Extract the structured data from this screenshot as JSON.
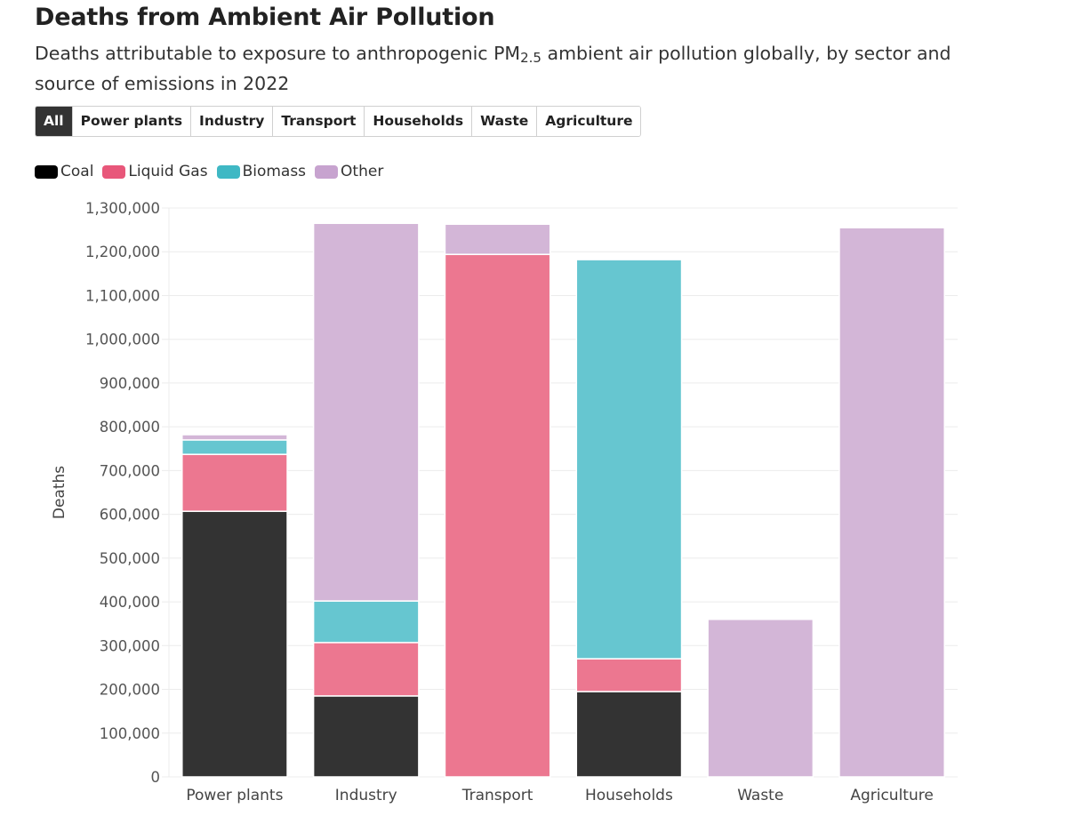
{
  "header": {
    "title": "Deaths from Ambient Air Pollution",
    "subtitle_pre": "Deaths attributable to exposure to anthropogenic PM",
    "subtitle_sub": "2.5",
    "subtitle_post": " ambient air pollution globally, by sector and source of emissions in 2022"
  },
  "tabs": [
    {
      "label": "All",
      "active": true
    },
    {
      "label": "Power plants",
      "active": false
    },
    {
      "label": "Industry",
      "active": false
    },
    {
      "label": "Transport",
      "active": false
    },
    {
      "label": "Households",
      "active": false
    },
    {
      "label": "Waste",
      "active": false
    },
    {
      "label": "Agriculture",
      "active": false
    }
  ],
  "chart_data": {
    "type": "bar",
    "stacked": true,
    "title": "Deaths from Ambient Air Pollution",
    "subtitle": "Deaths attributable to exposure to anthropogenic PM2.5 ambient air pollution globally, by sector and source of emissions in 2022",
    "xlabel": "",
    "ylabel": "Deaths",
    "ylim": [
      0,
      1300000
    ],
    "yticks": [
      0,
      100000,
      200000,
      300000,
      400000,
      500000,
      600000,
      700000,
      800000,
      900000,
      1000000,
      1100000,
      1200000,
      1300000
    ],
    "ytick_labels": [
      "0",
      "100,000",
      "200,000",
      "300,000",
      "400,000",
      "500,000",
      "600,000",
      "700,000",
      "800,000",
      "900,000",
      "1,000,000",
      "1,100,000",
      "1,200,000",
      "1,300,000"
    ],
    "grid": true,
    "legend_position": "top-left",
    "categories": [
      "Power plants",
      "Industry",
      "Transport",
      "Households",
      "Waste",
      "Agriculture"
    ],
    "series": [
      {
        "name": "Coal",
        "color": "#333333",
        "values": [
          607000,
          185000,
          0,
          195000,
          0,
          0
        ]
      },
      {
        "name": "Liquid Gas",
        "color": "#ec7790",
        "values": [
          130000,
          122000,
          1194000,
          75000,
          0,
          0
        ]
      },
      {
        "name": "Biomass",
        "color": "#66c6d0",
        "values": [
          33000,
          95000,
          0,
          912000,
          0,
          0
        ]
      },
      {
        "name": "Other",
        "color": "#d3b6d7",
        "values": [
          12000,
          863000,
          69000,
          0,
          360000,
          1255000
        ]
      }
    ]
  },
  "legend": [
    {
      "label": "Coal",
      "color": "#000000"
    },
    {
      "label": "Liquid Gas",
      "color": "#e8577a"
    },
    {
      "label": "Biomass",
      "color": "#3fb8c4"
    },
    {
      "label": "Other",
      "color": "#c7a3cf"
    }
  ]
}
